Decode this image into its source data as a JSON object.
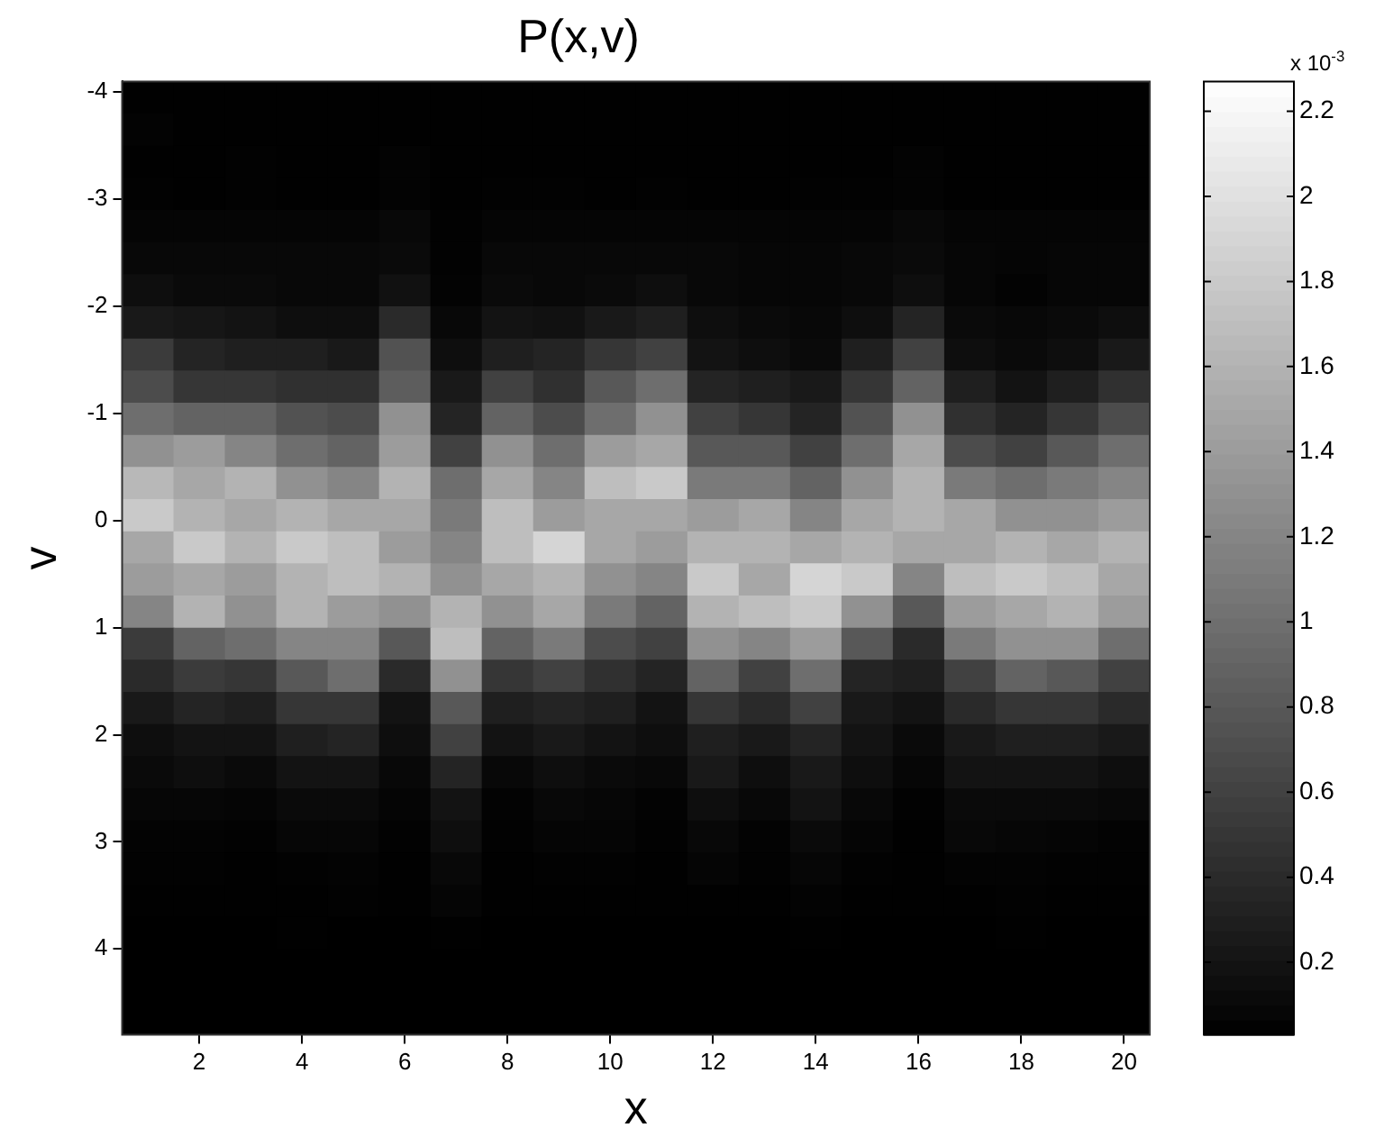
{
  "chart_data": {
    "type": "heatmap",
    "title": "P(x,v)",
    "xlabel": "x",
    "ylabel": "v",
    "clabel": "x 10$^{-3}$",
    "x": [
      1,
      2,
      3,
      4,
      5,
      6,
      7,
      8,
      9,
      10,
      11,
      12,
      13,
      14,
      15,
      16,
      17,
      18,
      19,
      20
    ],
    "y": [
      -3.95,
      -3.65,
      -3.35,
      -3.05,
      -2.75,
      -2.45,
      -2.15,
      -1.85,
      -1.55,
      -1.25,
      -0.95,
      -0.65,
      -0.35,
      -0.05,
      0.25,
      0.55,
      0.85,
      1.15,
      1.45,
      1.75,
      2.05,
      2.35,
      2.65,
      2.95,
      3.25,
      3.55,
      3.85,
      4.15,
      4.45,
      4.75
    ],
    "xlim": [
      0.5,
      20.5
    ],
    "xticks": [
      2,
      4,
      6,
      8,
      10,
      12,
      14,
      16,
      18,
      20
    ],
    "ylim": [
      4.8,
      -4.1
    ],
    "yticks": [
      -4,
      -3,
      -2,
      -1,
      0,
      1,
      2,
      3,
      4
    ],
    "clim": [
      0.03,
      2.27
    ],
    "cticks": [
      0.2,
      0.4,
      0.6,
      0.8,
      1,
      1.2,
      1.4,
      1.6,
      1.8,
      2,
      2.2
    ],
    "cells": [
      [
        0.04,
        0.04,
        0.04,
        0.04,
        0.04,
        0.04,
        0.04,
        0.04,
        0.04,
        0.04,
        0.04,
        0.04,
        0.04,
        0.04,
        0.04,
        0.04,
        0.04,
        0.04,
        0.04,
        0.04
      ],
      [
        0.06,
        0.04,
        0.04,
        0.04,
        0.04,
        0.04,
        0.04,
        0.04,
        0.04,
        0.04,
        0.04,
        0.04,
        0.04,
        0.04,
        0.04,
        0.04,
        0.04,
        0.04,
        0.04,
        0.04
      ],
      [
        0.04,
        0.04,
        0.05,
        0.04,
        0.04,
        0.06,
        0.04,
        0.04,
        0.04,
        0.04,
        0.04,
        0.04,
        0.04,
        0.04,
        0.04,
        0.06,
        0.04,
        0.04,
        0.04,
        0.04
      ],
      [
        0.05,
        0.04,
        0.05,
        0.04,
        0.04,
        0.06,
        0.04,
        0.05,
        0.05,
        0.04,
        0.05,
        0.04,
        0.04,
        0.05,
        0.05,
        0.06,
        0.04,
        0.04,
        0.04,
        0.04
      ],
      [
        0.07,
        0.07,
        0.07,
        0.07,
        0.07,
        0.1,
        0.05,
        0.07,
        0.07,
        0.07,
        0.07,
        0.07,
        0.07,
        0.07,
        0.07,
        0.1,
        0.07,
        0.07,
        0.07,
        0.07
      ],
      [
        0.1,
        0.1,
        0.1,
        0.1,
        0.1,
        0.12,
        0.05,
        0.1,
        0.1,
        0.1,
        0.1,
        0.1,
        0.08,
        0.08,
        0.1,
        0.12,
        0.08,
        0.07,
        0.08,
        0.08
      ],
      [
        0.15,
        0.12,
        0.12,
        0.1,
        0.1,
        0.18,
        0.06,
        0.12,
        0.1,
        0.12,
        0.15,
        0.1,
        0.08,
        0.08,
        0.1,
        0.15,
        0.08,
        0.06,
        0.08,
        0.08
      ],
      [
        0.25,
        0.22,
        0.2,
        0.15,
        0.15,
        0.4,
        0.1,
        0.2,
        0.18,
        0.25,
        0.3,
        0.15,
        0.12,
        0.1,
        0.15,
        0.35,
        0.12,
        0.1,
        0.12,
        0.15
      ],
      [
        0.55,
        0.35,
        0.3,
        0.3,
        0.25,
        0.75,
        0.15,
        0.3,
        0.35,
        0.5,
        0.6,
        0.2,
        0.15,
        0.12,
        0.3,
        0.6,
        0.15,
        0.12,
        0.15,
        0.25
      ],
      [
        0.7,
        0.5,
        0.5,
        0.45,
        0.45,
        0.85,
        0.25,
        0.6,
        0.45,
        0.8,
        1.0,
        0.35,
        0.3,
        0.25,
        0.5,
        0.9,
        0.3,
        0.2,
        0.3,
        0.45
      ],
      [
        1.0,
        0.9,
        0.9,
        0.75,
        0.7,
        1.3,
        0.35,
        0.9,
        0.7,
        1.0,
        1.3,
        0.6,
        0.5,
        0.35,
        0.75,
        1.3,
        0.45,
        0.35,
        0.5,
        0.7
      ],
      [
        1.3,
        1.4,
        1.2,
        1.0,
        0.9,
        1.4,
        0.6,
        1.3,
        1.0,
        1.4,
        1.5,
        0.8,
        0.8,
        0.6,
        1.0,
        1.5,
        0.7,
        0.6,
        0.8,
        1.0
      ],
      [
        1.65,
        1.5,
        1.6,
        1.3,
        1.2,
        1.6,
        1.0,
        1.5,
        1.2,
        1.7,
        1.8,
        1.1,
        1.1,
        0.9,
        1.3,
        1.6,
        1.1,
        1.0,
        1.1,
        1.2
      ],
      [
        1.8,
        1.6,
        1.5,
        1.6,
        1.5,
        1.5,
        1.1,
        1.7,
        1.4,
        1.5,
        1.5,
        1.4,
        1.5,
        1.2,
        1.5,
        1.6,
        1.5,
        1.3,
        1.3,
        1.4
      ],
      [
        1.5,
        1.8,
        1.6,
        1.8,
        1.7,
        1.4,
        1.2,
        1.7,
        1.9,
        1.5,
        1.4,
        1.6,
        1.6,
        1.5,
        1.6,
        1.5,
        1.5,
        1.6,
        1.5,
        1.6
      ],
      [
        1.4,
        1.5,
        1.4,
        1.6,
        1.7,
        1.6,
        1.3,
        1.5,
        1.6,
        1.3,
        1.2,
        1.8,
        1.5,
        1.9,
        1.8,
        1.2,
        1.7,
        1.8,
        1.7,
        1.5
      ],
      [
        1.2,
        1.6,
        1.3,
        1.6,
        1.4,
        1.3,
        1.6,
        1.3,
        1.5,
        1.1,
        0.9,
        1.6,
        1.7,
        1.8,
        1.3,
        0.8,
        1.4,
        1.5,
        1.6,
        1.4
      ],
      [
        0.55,
        0.9,
        1.0,
        1.2,
        1.2,
        0.8,
        1.7,
        0.9,
        1.1,
        0.7,
        0.6,
        1.3,
        1.2,
        1.4,
        0.8,
        0.4,
        1.1,
        1.3,
        1.3,
        1.0
      ],
      [
        0.4,
        0.55,
        0.5,
        0.8,
        1.0,
        0.4,
        1.3,
        0.5,
        0.6,
        0.45,
        0.35,
        0.9,
        0.6,
        1.0,
        0.35,
        0.3,
        0.6,
        0.9,
        0.8,
        0.6
      ],
      [
        0.25,
        0.35,
        0.3,
        0.5,
        0.5,
        0.2,
        0.8,
        0.3,
        0.35,
        0.3,
        0.2,
        0.5,
        0.4,
        0.6,
        0.25,
        0.2,
        0.4,
        0.5,
        0.5,
        0.4
      ],
      [
        0.15,
        0.2,
        0.2,
        0.3,
        0.35,
        0.15,
        0.6,
        0.2,
        0.25,
        0.2,
        0.15,
        0.3,
        0.25,
        0.35,
        0.2,
        0.12,
        0.25,
        0.3,
        0.3,
        0.25
      ],
      [
        0.12,
        0.15,
        0.12,
        0.2,
        0.2,
        0.1,
        0.35,
        0.1,
        0.15,
        0.12,
        0.1,
        0.25,
        0.15,
        0.25,
        0.15,
        0.08,
        0.2,
        0.2,
        0.2,
        0.15
      ],
      [
        0.08,
        0.08,
        0.07,
        0.12,
        0.12,
        0.07,
        0.2,
        0.06,
        0.1,
        0.08,
        0.06,
        0.15,
        0.1,
        0.2,
        0.1,
        0.05,
        0.12,
        0.12,
        0.12,
        0.1
      ],
      [
        0.06,
        0.06,
        0.05,
        0.08,
        0.08,
        0.05,
        0.15,
        0.05,
        0.07,
        0.07,
        0.05,
        0.1,
        0.06,
        0.12,
        0.07,
        0.04,
        0.1,
        0.08,
        0.07,
        0.06
      ],
      [
        0.05,
        0.05,
        0.04,
        0.05,
        0.06,
        0.04,
        0.1,
        0.04,
        0.05,
        0.05,
        0.04,
        0.07,
        0.05,
        0.08,
        0.05,
        0.04,
        0.06,
        0.06,
        0.05,
        0.05
      ],
      [
        0.04,
        0.04,
        0.04,
        0.04,
        0.05,
        0.04,
        0.07,
        0.04,
        0.04,
        0.04,
        0.04,
        0.04,
        0.04,
        0.06,
        0.04,
        0.04,
        0.04,
        0.05,
        0.04,
        0.04
      ],
      [
        0.03,
        0.03,
        0.03,
        0.04,
        0.03,
        0.03,
        0.04,
        0.03,
        0.03,
        0.03,
        0.03,
        0.03,
        0.03,
        0.04,
        0.03,
        0.03,
        0.03,
        0.04,
        0.03,
        0.03
      ],
      [
        0.03,
        0.03,
        0.03,
        0.03,
        0.03,
        0.03,
        0.03,
        0.03,
        0.03,
        0.03,
        0.03,
        0.03,
        0.03,
        0.03,
        0.03,
        0.03,
        0.03,
        0.03,
        0.03,
        0.03
      ],
      [
        0.03,
        0.03,
        0.03,
        0.03,
        0.03,
        0.03,
        0.03,
        0.03,
        0.03,
        0.03,
        0.03,
        0.03,
        0.03,
        0.03,
        0.03,
        0.03,
        0.03,
        0.03,
        0.03,
        0.03
      ],
      [
        0.03,
        0.03,
        0.03,
        0.03,
        0.03,
        0.03,
        0.03,
        0.03,
        0.03,
        0.03,
        0.03,
        0.03,
        0.03,
        0.03,
        0.03,
        0.03,
        0.03,
        0.03,
        0.03,
        0.03
      ]
    ]
  }
}
